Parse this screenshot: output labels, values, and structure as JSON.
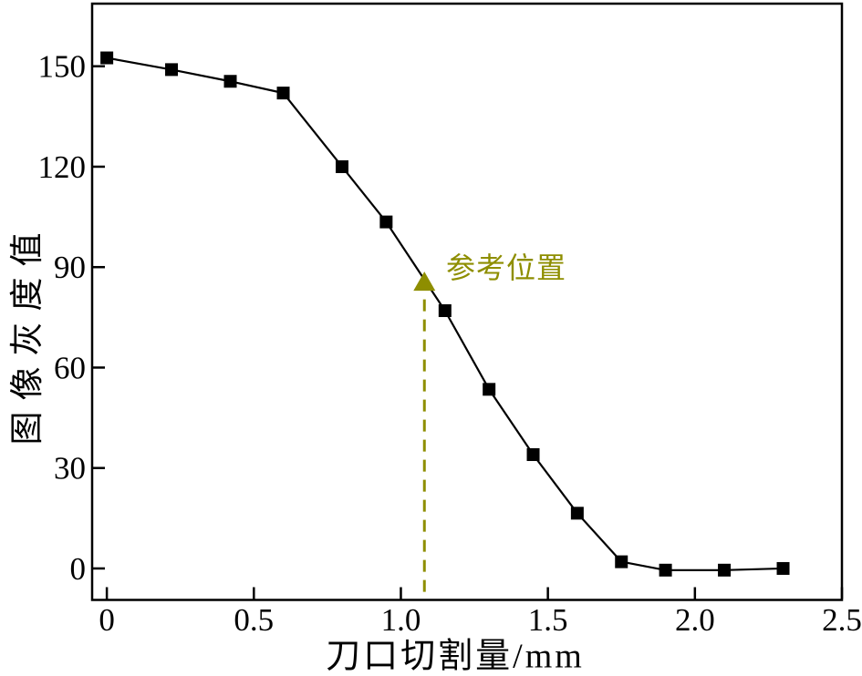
{
  "chart_data": {
    "type": "line",
    "title": "",
    "xlabel": "刀口切割量/mm",
    "ylabel": "图像灰度值",
    "x": [
      0,
      0.22,
      0.42,
      0.6,
      0.8,
      0.95,
      1.15,
      1.3,
      1.45,
      1.6,
      1.75,
      1.9,
      2.1,
      2.3
    ],
    "y": [
      152.5,
      149,
      145.5,
      142,
      120,
      103.5,
      77,
      53.5,
      34,
      16.5,
      2,
      -0.5,
      -0.5,
      0
    ],
    "x_ticks": {
      "values": [
        0,
        0.5,
        1.0,
        1.5,
        2.0,
        2.5
      ],
      "labels": [
        "0",
        "0.5",
        "1.0",
        "1.5",
        "2.0",
        "2.5"
      ]
    },
    "y_ticks": {
      "values": [
        0,
        30,
        60,
        90,
        120,
        150
      ],
      "labels": [
        "0",
        "30",
        "60",
        "90",
        "120",
        "150"
      ]
    },
    "xlim": [
      -0.05,
      2.5
    ],
    "ylim": [
      -9.4,
      168.7
    ],
    "grid": false,
    "legend": "none",
    "marker": "square",
    "colors": {
      "line": "#000000",
      "marker": "#000000",
      "axis": "#000000",
      "background": "#ffffff"
    },
    "annotation": {
      "text": "参考位置",
      "x": 1.08,
      "y": 85,
      "marker": "triangle-up",
      "color": "#8E8E00",
      "dashed_line_to_axis": true
    }
  }
}
